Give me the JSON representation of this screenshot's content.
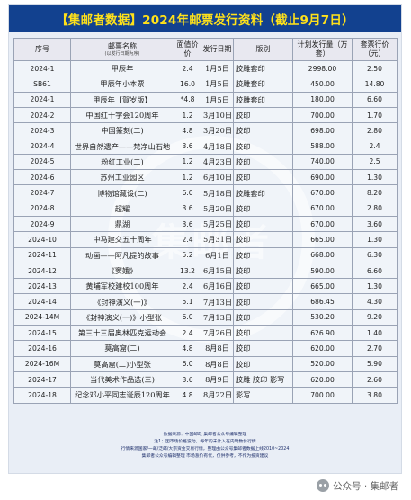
{
  "title": "【集邮者数据】2024年邮票发行资料（截止9月7日）",
  "watermark": "集邮者",
  "table": {
    "headers": {
      "code": "序号",
      "name": "邮票名称",
      "name_sub": "(以发行日期为序)",
      "price": "面值价价",
      "date": "发行日期",
      "print": "版别",
      "qty": "计划发行量（万套）",
      "face": "套票行价（元）"
    },
    "rows": [
      {
        "code": "2024-1",
        "name": "甲辰年",
        "price": "2.4",
        "date": "1月5日",
        "print": "胶雕套印",
        "qty": "2998.00",
        "face": "2.50"
      },
      {
        "code": "SB61",
        "name": "甲辰年小本票",
        "price": "16.0",
        "date": "1月5日",
        "print": "胶雕套印",
        "qty": "450.00",
        "face": "14.80"
      },
      {
        "code": "2024-1",
        "name": "甲辰年【賀岁版】",
        "price": "*4.8",
        "date": "1月5日",
        "print": "胶雕套印",
        "qty": "180.00",
        "face": "6.60"
      },
      {
        "code": "2024-2",
        "name": "中国红十字会120周年",
        "price": "1.2",
        "date": "3月10日",
        "print": "胶印",
        "qty": "700.00",
        "face": "1.70"
      },
      {
        "code": "2024-3",
        "name": "中国篆刻(二)",
        "price": "4.8",
        "date": "3月20日",
        "print": "胶印",
        "qty": "698.00",
        "face": "2.80"
      },
      {
        "code": "2024-4",
        "name": "世界自然遗产——梵净山石地",
        "price": "3.6",
        "date": "4月18日",
        "print": "胶印",
        "qty": "588.00",
        "face": "2.4"
      },
      {
        "code": "2024-5",
        "name": "粉红工业(二)",
        "price": "1.2",
        "date": "4月23日",
        "print": "胶印",
        "qty": "740.00",
        "face": "2.5"
      },
      {
        "code": "2024-6",
        "name": "苏州工业园区",
        "price": "1.2",
        "date": "6月10日",
        "print": "胶印",
        "qty": "690.00",
        "face": "1.30"
      },
      {
        "code": "2024-7",
        "name": "博物馆藏设(二)",
        "price": "6.0",
        "date": "5月18日",
        "print": "胶雕套印",
        "qty": "670.00",
        "face": "8.20"
      },
      {
        "code": "2024-8",
        "name": "超耀",
        "price": "3.6",
        "date": "5月20日",
        "print": "胶印",
        "qty": "670.00",
        "face": "2.80"
      },
      {
        "code": "2024-9",
        "name": "鼎湖",
        "price": "3.6",
        "date": "5月25日",
        "print": "胶印",
        "qty": "670.00",
        "face": "3.60"
      },
      {
        "code": "2024-10",
        "name": "中马建交五十周年",
        "price": "2.4",
        "date": "5月31日",
        "print": "胶印",
        "qty": "665.00",
        "face": "1.30"
      },
      {
        "code": "2024-11",
        "name": "动画——阿凡提的故事",
        "price": "5.2",
        "date": "6月1日",
        "print": "胶印",
        "qty": "668.00",
        "face": "6.30"
      },
      {
        "code": "2024-12",
        "name": "《窦娥》",
        "price": "13.2",
        "date": "6月15日",
        "print": "胶印",
        "qty": "590.00",
        "face": "6.60"
      },
      {
        "code": "2024-13",
        "name": "黄埔军校建校100周年",
        "price": "2.4",
        "date": "6月16日",
        "print": "胶印",
        "qty": "665.00",
        "face": "1.30"
      },
      {
        "code": "2024-14",
        "name": "《封神演义(一)》",
        "price": "5.1",
        "date": "7月13日",
        "print": "胶印",
        "qty": "686.45",
        "face": "4.30"
      },
      {
        "code": "2024-14M",
        "name": "《封神演义(一)》小型张",
        "price": "6.0",
        "date": "7月13日",
        "print": "胶印",
        "qty": "530.20",
        "face": "9.20"
      },
      {
        "code": "2024-15",
        "name": "第三十三届奥林匹克运动会",
        "price": "2.4",
        "date": "7月26日",
        "print": "胶印",
        "qty": "626.90",
        "face": "1.40"
      },
      {
        "code": "2024-16",
        "name": "莫高窟(二)",
        "price": "4.8",
        "date": "8月8日",
        "print": "胶印",
        "qty": "620.00",
        "face": "2.70"
      },
      {
        "code": "2024-16M",
        "name": "莫高窟(二)小型张",
        "price": "6.0",
        "date": "8月8日",
        "print": "胶印",
        "qty": "520.00",
        "face": "5.90"
      },
      {
        "code": "2024-17",
        "name": "当代美术作品选(三)",
        "price": "3.6",
        "date": "8月9日",
        "print": "胶雕 胶印 影写",
        "qty": "620.00",
        "face": "2.60"
      },
      {
        "code": "2024-18",
        "name": "纪念邓小平同志诞辰120周年",
        "price": "4.8",
        "date": "8月22日",
        "print": "影写",
        "qty": "700.00",
        "face": "3.80"
      }
    ]
  },
  "footer": {
    "lines": [
      "数据来源：中国邮政 集邮者公众号编辑整理",
      "注1：因市场价格波动，每年的未计入在内时数价行情",
      "行情来源国家/一邮/泛邮/大宗资金交易行情，整理由公众号集邮者数据上线2010~2024",
      "集邮者公众号编辑整理 市场涨价有代，仅供参考，不作为投资建议"
    ]
  },
  "wechat": {
    "label": "公众号 · 集邮者"
  }
}
